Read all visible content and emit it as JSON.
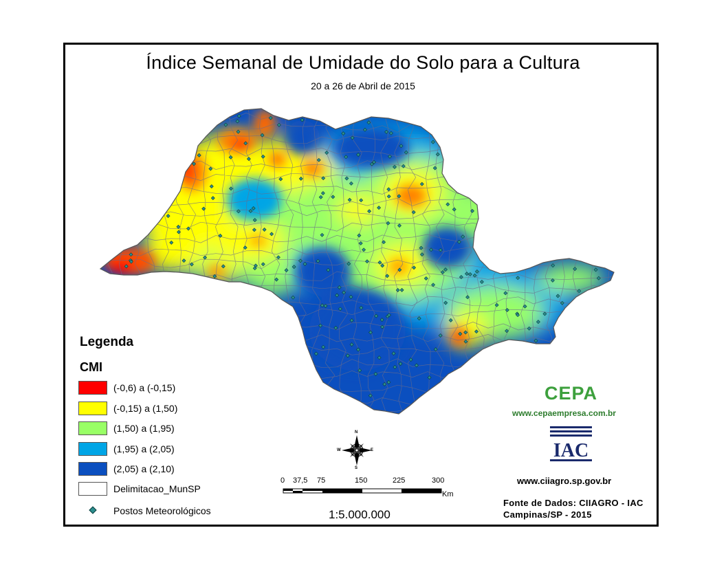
{
  "map": {
    "title": "Índice Semanal de Umidade do Solo para a Cultura",
    "period": "20 a 26 de Abril de 2015"
  },
  "legend": {
    "title": "Legenda",
    "variable": "CMI",
    "classes": [
      {
        "label": "(-0,6) a (-0,15)",
        "color": "#ff0000"
      },
      {
        "label": "(-0,15) a (1,50)",
        "color": "#ffff00"
      },
      {
        "label": "(1,50) a (1,95)",
        "color": "#99ff66"
      },
      {
        "label": "(1,95) a (2,05)",
        "color": "#00a5e6"
      },
      {
        "label": "(2,05) a (2,10)",
        "color": "#0b4fbf"
      }
    ],
    "boundary_label": "Delimitacao_MunSP",
    "stations_label": "Postos Meteorológicos",
    "station_color": "#2c8f8f"
  },
  "compass": {
    "n": "N",
    "s": "S",
    "e": "E",
    "w": "W"
  },
  "scalebar": {
    "ticks": [
      "0",
      "37,5",
      "75",
      "150",
      "225",
      "300"
    ],
    "unit": "Km",
    "ratio": "1:5.000.000"
  },
  "credits": {
    "cepa_logo": "CEPA",
    "cepa_url": "www.cepaempresa.com.br",
    "iac_logo": "IAC",
    "ciiagro_url": "www.ciiagro.sp.gov.br",
    "source": "Fonte de Dados: CIIAGRO - IAC",
    "place_year": "Campinas/SP - 2015"
  }
}
